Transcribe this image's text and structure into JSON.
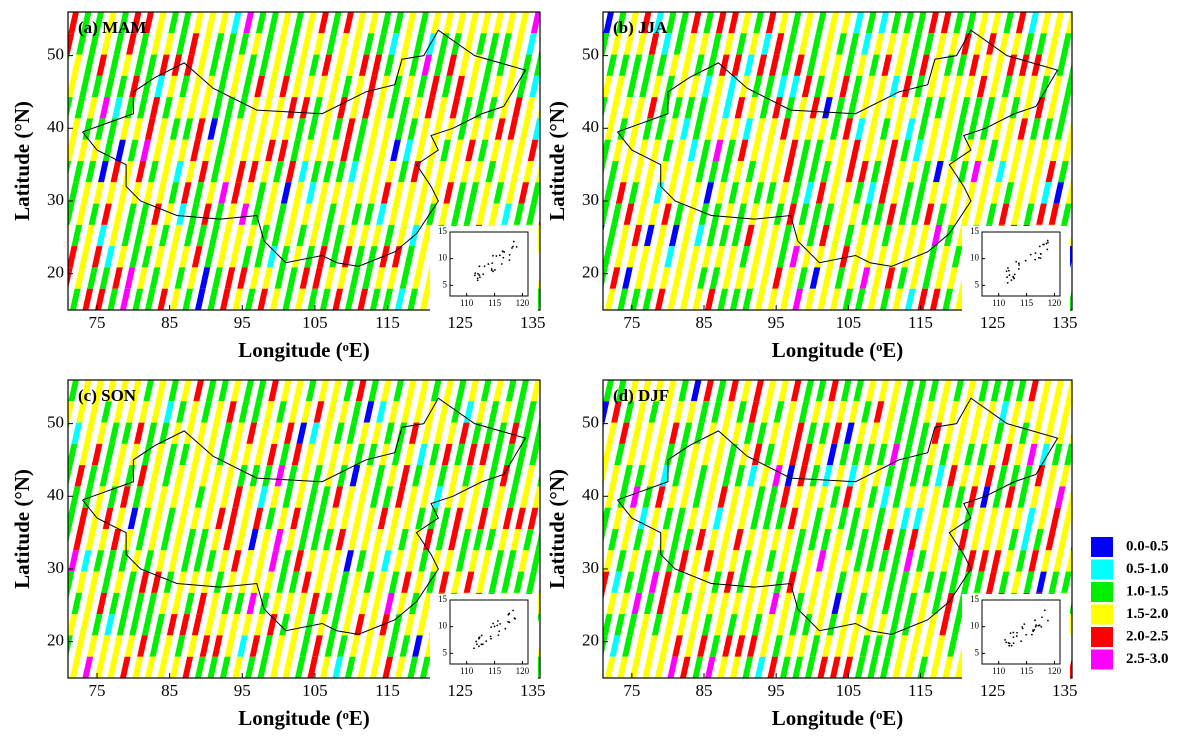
{
  "title_panels": [
    "(a) MAM",
    "(b) JJA",
    "(c) SON",
    "(d) DJF"
  ],
  "xlabel": "Longitude (ᵒE)",
  "ylabel": "Latitude (°N)",
  "xlim": [
    71,
    136
  ],
  "ylim": [
    15,
    56
  ],
  "xticks": [
    75,
    85,
    95,
    105,
    115,
    125,
    135
  ],
  "yticks": [
    20,
    30,
    40,
    50
  ],
  "inset": {
    "xlim": [
      107,
      121
    ],
    "ylim": [
      3,
      15
    ],
    "xticks": [
      110,
      115,
      120
    ],
    "yticks": [
      5,
      10,
      15
    ]
  },
  "legend": [
    {
      "label": "0.0-0.5",
      "color": "#0000ff"
    },
    {
      "label": "0.5-1.0",
      "color": "#00ffff"
    },
    {
      "label": "1.0-1.5",
      "color": "#00ee00"
    },
    {
      "label": "1.5-2.0",
      "color": "#ffff00"
    },
    {
      "label": "2.0-2.5",
      "color": "#ff0000"
    },
    {
      "label": "2.5-3.0",
      "color": "#ff00ff"
    }
  ]
}
